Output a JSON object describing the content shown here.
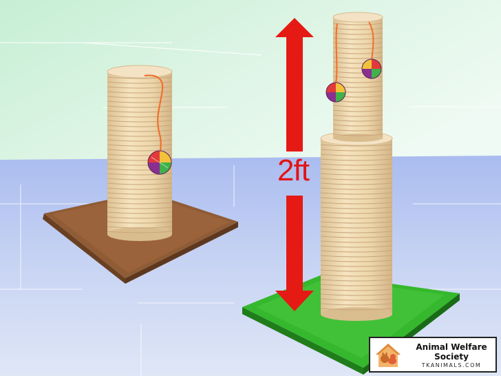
{
  "measurement": {
    "label": "2ft"
  },
  "logo": {
    "name": "Animal Welfare Society",
    "url": "TKANIMALS.COM"
  },
  "colors": {
    "sky": "#c9f0d8",
    "floor": "#b7c8f0",
    "sisal": "#efd9b0",
    "brown_base": "#8b5a35",
    "green_base": "#33b52c",
    "arrow": "#e51a14",
    "yarn_string": "#f0702a"
  }
}
